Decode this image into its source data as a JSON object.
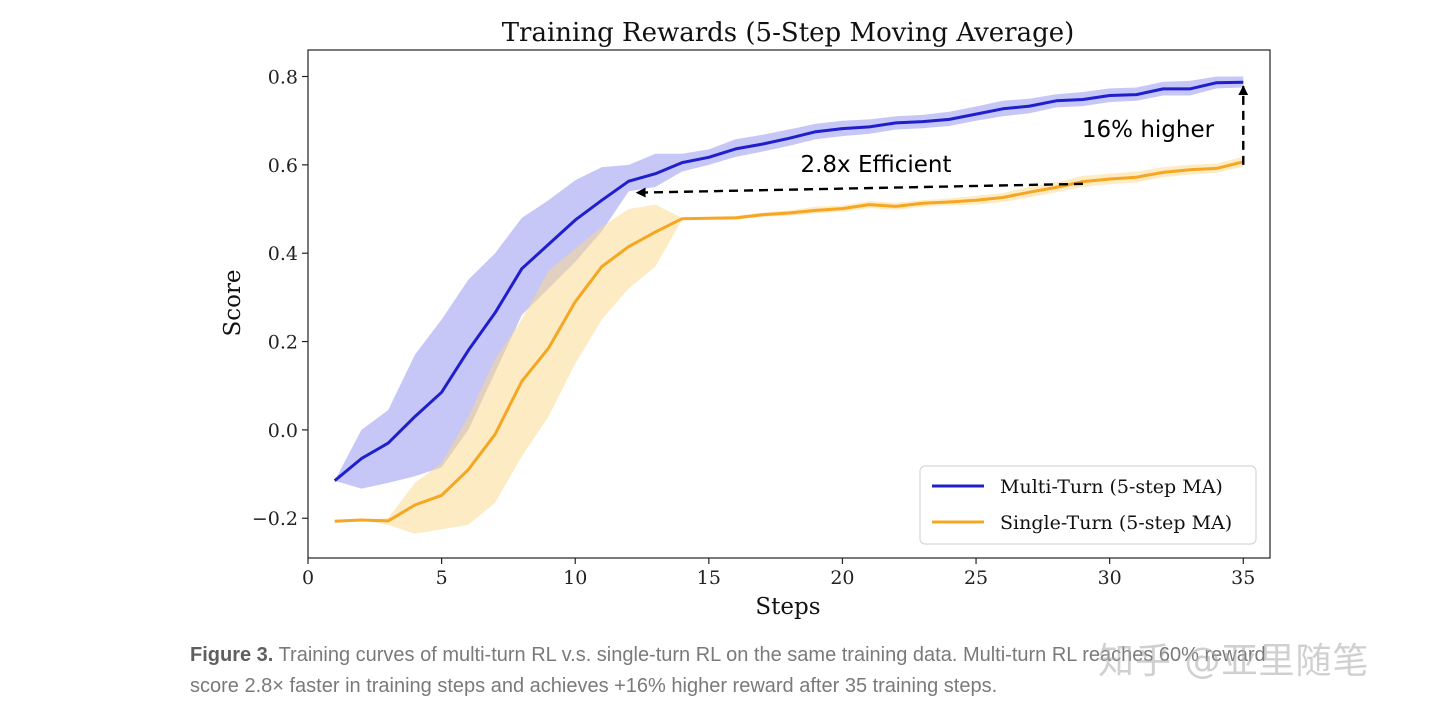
{
  "chart_data": {
    "type": "line",
    "title": "Training Rewards (5-Step Moving Average)",
    "xlabel": "Steps",
    "ylabel": "Score",
    "xlim": [
      0,
      36
    ],
    "ylim": [
      -0.29,
      0.86
    ],
    "xticks": [
      0,
      5,
      10,
      15,
      20,
      25,
      30,
      35
    ],
    "yticks": [
      0.8,
      0.6,
      0.4,
      0.2,
      0.0,
      -0.2
    ],
    "ytick_labels": [
      "0.8",
      "0.6",
      "0.4",
      "0.2",
      "0.0",
      "−0.2"
    ],
    "grid": false,
    "legend_position": "bottom-right",
    "x": [
      1,
      2,
      3,
      4,
      5,
      6,
      7,
      8,
      9,
      10,
      11,
      12,
      13,
      14,
      15,
      16,
      17,
      18,
      19,
      20,
      21,
      22,
      23,
      24,
      25,
      26,
      27,
      28,
      29,
      30,
      31,
      32,
      33,
      34,
      35
    ],
    "series": [
      {
        "name": "Multi-Turn (5-step MA)",
        "color": "#1f1fcc",
        "band_color": "#8f8ff0",
        "values": [
          -0.115,
          -0.065,
          -0.03,
          0.03,
          0.085,
          0.18,
          0.265,
          0.365,
          0.42,
          0.475,
          0.52,
          0.563,
          0.58,
          0.605,
          0.617,
          0.636,
          0.647,
          0.66,
          0.675,
          0.682,
          0.686,
          0.695,
          0.698,
          0.703,
          0.715,
          0.727,
          0.733,
          0.745,
          0.748,
          0.757,
          0.759,
          0.772,
          0.772,
          0.786,
          0.787
        ],
        "upper": [
          -0.115,
          0.0,
          0.045,
          0.17,
          0.25,
          0.34,
          0.4,
          0.48,
          0.52,
          0.565,
          0.595,
          0.6,
          0.625,
          0.625,
          0.635,
          0.658,
          0.668,
          0.68,
          0.693,
          0.7,
          0.703,
          0.71,
          0.713,
          0.72,
          0.732,
          0.745,
          0.75,
          0.76,
          0.765,
          0.773,
          0.775,
          0.788,
          0.79,
          0.8,
          0.8
        ],
        "lower": [
          -0.115,
          -0.133,
          -0.12,
          -0.105,
          -0.085,
          0.0,
          0.13,
          0.26,
          0.32,
          0.38,
          0.45,
          0.54,
          0.55,
          0.585,
          0.6,
          0.618,
          0.63,
          0.643,
          0.658,
          0.665,
          0.67,
          0.68,
          0.683,
          0.688,
          0.7,
          0.71,
          0.717,
          0.73,
          0.733,
          0.742,
          0.745,
          0.757,
          0.757,
          0.773,
          0.775
        ]
      },
      {
        "name": "Single-Turn (5-step MA)",
        "color": "#f5a623",
        "band_color": "#fbd88a",
        "values": [
          -0.207,
          -0.204,
          -0.206,
          -0.17,
          -0.148,
          -0.09,
          -0.01,
          0.11,
          0.185,
          0.29,
          0.37,
          0.415,
          0.448,
          0.478,
          0.479,
          0.48,
          0.487,
          0.491,
          0.497,
          0.501,
          0.51,
          0.506,
          0.513,
          0.516,
          0.52,
          0.526,
          0.538,
          0.549,
          0.562,
          0.568,
          0.572,
          0.583,
          0.589,
          0.592,
          0.607
        ],
        "upper": [
          -0.207,
          -0.204,
          -0.2,
          -0.12,
          -0.075,
          0.03,
          0.16,
          0.25,
          0.36,
          0.41,
          0.46,
          0.5,
          0.51,
          0.48,
          0.482,
          0.485,
          0.492,
          0.497,
          0.505,
          0.508,
          0.518,
          0.514,
          0.52,
          0.524,
          0.53,
          0.536,
          0.55,
          0.56,
          0.575,
          0.58,
          0.585,
          0.595,
          0.6,
          0.603,
          0.618
        ],
        "lower": [
          -0.207,
          -0.204,
          -0.215,
          -0.235,
          -0.225,
          -0.215,
          -0.165,
          -0.06,
          0.03,
          0.15,
          0.25,
          0.32,
          0.37,
          0.476,
          0.476,
          0.476,
          0.482,
          0.485,
          0.49,
          0.494,
          0.502,
          0.498,
          0.505,
          0.508,
          0.51,
          0.516,
          0.526,
          0.538,
          0.55,
          0.556,
          0.56,
          0.572,
          0.578,
          0.582,
          0.596
        ]
      }
    ],
    "annotations": [
      {
        "text": "2.8x Efficient",
        "arrow_from": [
          29,
          0.557
        ],
        "arrow_to": [
          12.3,
          0.537
        ]
      },
      {
        "text": "16% higher",
        "arrow_from": [
          35,
          0.6
        ],
        "arrow_to": [
          35,
          0.787
        ]
      }
    ]
  },
  "caption": {
    "label": "Figure 3.",
    "text": "Training curves of multi-turn RL v.s. single-turn RL on the same training data. Multi-turn RL reaches 60% reward score 2.8× faster in training steps and achieves +16% higher reward after 35 training steps."
  },
  "watermark": "知乎 @亚里随笔"
}
